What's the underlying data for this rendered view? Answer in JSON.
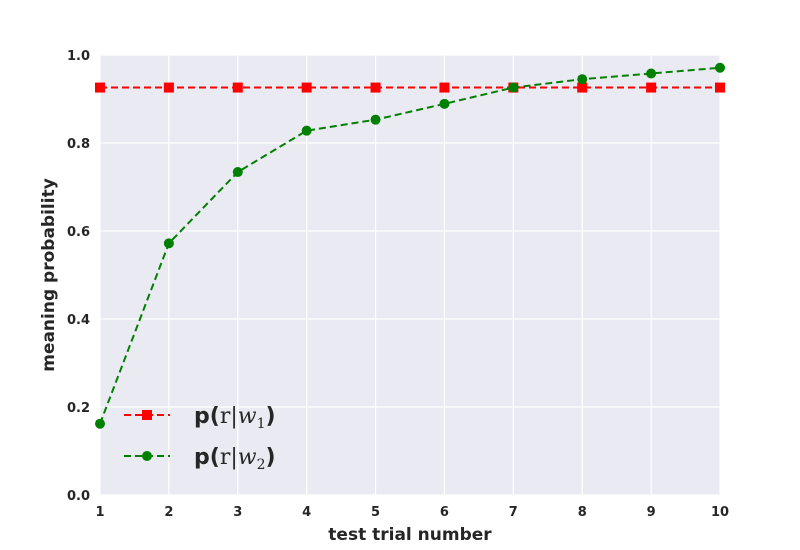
{
  "chart_data": {
    "type": "line",
    "xlabel": "test trial number",
    "ylabel": "meaning probability",
    "xlim": [
      1,
      10
    ],
    "ylim": [
      0.0,
      1.0
    ],
    "x_ticks": [
      "1",
      "2",
      "3",
      "4",
      "5",
      "6",
      "7",
      "8",
      "9",
      "10"
    ],
    "y_ticks": [
      "0.0",
      "0.2",
      "0.4",
      "0.6",
      "0.8",
      "1.0"
    ],
    "grid": true,
    "legend_position": "bottom-left",
    "x": [
      1,
      2,
      3,
      4,
      5,
      6,
      7,
      8,
      9,
      10
    ],
    "series": [
      {
        "name": "p(r|w1)",
        "legend_prefix": "p(",
        "legend_math_r": "r",
        "legend_math_bar": "|",
        "legend_math_w": "w",
        "legend_math_sub": "1",
        "legend_suffix": ")",
        "color": "#ff0000",
        "marker": "square",
        "linestyle": "dashed",
        "values": [
          0.926,
          0.926,
          0.926,
          0.926,
          0.926,
          0.926,
          0.926,
          0.926,
          0.926,
          0.926
        ]
      },
      {
        "name": "p(r|w2)",
        "legend_prefix": "p(",
        "legend_math_r": "r",
        "legend_math_bar": "|",
        "legend_math_w": "w",
        "legend_math_sub": "2",
        "legend_suffix": ")",
        "color": "#008000",
        "marker": "circle",
        "linestyle": "dashed",
        "values": [
          0.162,
          0.572,
          0.734,
          0.828,
          0.853,
          0.889,
          0.926,
          0.945,
          0.958,
          0.971
        ]
      }
    ]
  }
}
